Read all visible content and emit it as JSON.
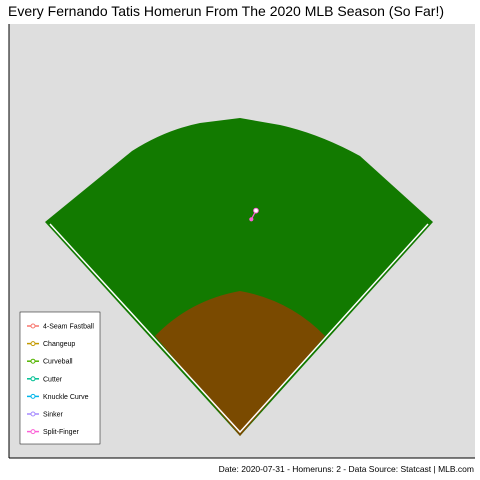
{
  "title": "Every Fernando Tatis Homerun From The 2020 MLB Season (So Far!)",
  "caption": "Date: 2020-07-31 - Homeruns: 2 - Data Source: Statcast | MLB.com",
  "colors": {
    "panel": "#dedede",
    "grass": "#127a00",
    "dirt": "#7a4a00",
    "chalk": "#ffffff"
  },
  "chart_data": {
    "type": "scatter",
    "title": "Every Fernando Tatis Homerun From The 2020 MLB Season (So Far!)",
    "xlabel": "",
    "ylabel": "",
    "grid": false,
    "legend_position": "bottom-left",
    "legend": [
      {
        "name": "4-Seam Fastball",
        "color": "#f8766d"
      },
      {
        "name": "Changeup",
        "color": "#c49a00"
      },
      {
        "name": "Curveball",
        "color": "#53b400"
      },
      {
        "name": "Cutter",
        "color": "#00c094"
      },
      {
        "name": "Knuckle Curve",
        "color": "#00b6eb"
      },
      {
        "name": "Sinker",
        "color": "#a58aff"
      },
      {
        "name": "Split-Finger",
        "color": "#fb61d7"
      }
    ],
    "series": [
      {
        "name": "Split-Finger",
        "points": [
          {
            "x": 0.52,
            "y": 0.55
          },
          {
            "x": 0.53,
            "y": 0.57
          }
        ]
      }
    ]
  }
}
